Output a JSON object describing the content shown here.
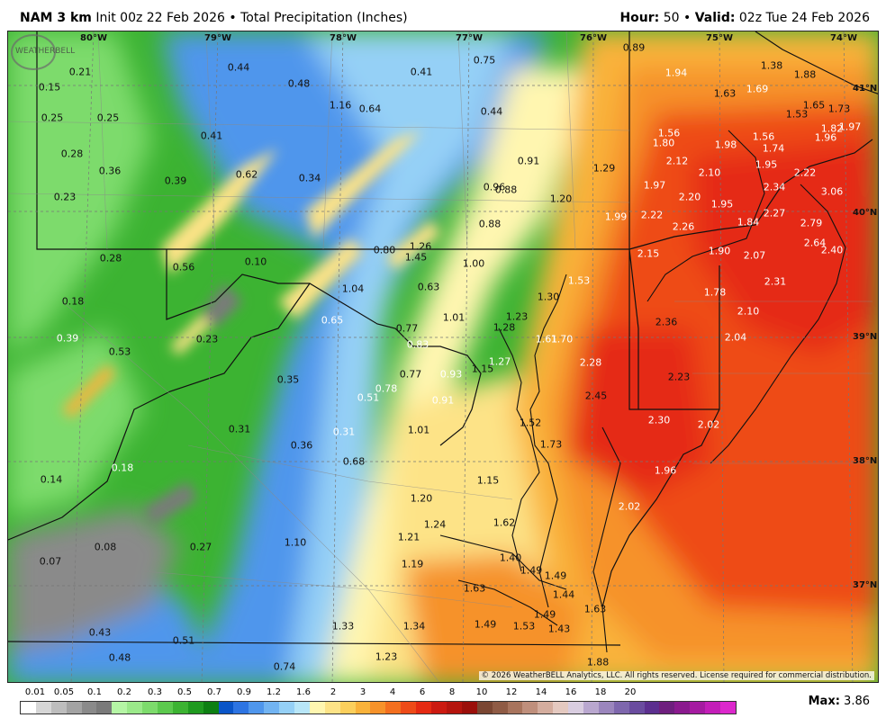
{
  "header": {
    "model": "NAM 3 km",
    "init": "Init 00z 22 Feb 2026",
    "separator": "•",
    "field": "Total Precipitation (Inches)",
    "hour_label": "Hour:",
    "hour_value": "50",
    "valid_label": "Valid:",
    "valid_value": "02z Tue 24 Feb 2026"
  },
  "map": {
    "lon_labels": [
      "80°W",
      "79°W",
      "78°W",
      "77°W",
      "76°W",
      "75°W",
      "74°W"
    ],
    "lat_labels": [
      "41°N",
      "40°N",
      "39°N",
      "38°N",
      "37°N"
    ],
    "copyright": "© 2026 WeatherBELL Analytics, LLC. All rights reserved. License required for commercial distribution.",
    "logo_text": "WEATHERBELL",
    "precip_labels": [
      "0.21",
      "0.44",
      "0.41",
      "0.75",
      "0.89",
      "1.94",
      "1.38",
      "1.88",
      "0.15",
      "0.48",
      "1.63",
      "1.69",
      "1.16",
      "0.64",
      "0.44",
      "1.65",
      "1.73",
      "0.25",
      "0.25",
      "1.53",
      "0.41",
      "1.56",
      "1.80",
      "1.56",
      "1.74",
      "1.82",
      "1.97",
      "1.96",
      "0.28",
      "0.36",
      "0.62",
      "0.34",
      "0.91",
      "1.29",
      "2.12",
      "2.10",
      "1.98",
      "1.95",
      "2.22",
      "0.39",
      "0.23",
      "0.96",
      "0.88",
      "1.20",
      "1.97",
      "2.20",
      "2.34",
      "3.06",
      "1.95",
      "1.99",
      "2.22",
      "2.26",
      "1.84",
      "2.27",
      "2.79",
      "0.88",
      "0.80",
      "1.26",
      "1.45",
      "1.00",
      "2.15",
      "1.90",
      "2.07",
      "2.64",
      "2.40",
      "0.28",
      "0.56",
      "0.10",
      "1.04",
      "0.63",
      "1.53",
      "2.31",
      "1.78",
      "0.18",
      "1.01",
      "1.30",
      "1.23",
      "2.10",
      "0.65",
      "0.77",
      "1.28",
      "2.36",
      "0.39",
      "0.23",
      "0.83",
      "1.61",
      "1.70",
      "2.04",
      "0.53",
      "1.27",
      "2.28",
      "0.77",
      "0.93",
      "1.15",
      "0.35",
      "2.23",
      "0.78",
      "2.45",
      "0.51",
      "0.91",
      "1.52",
      "2.30",
      "2.02",
      "0.31",
      "0.31",
      "1.01",
      "0.36",
      "1.73",
      "0.18",
      "0.68",
      "1.96",
      "0.14",
      "1.15",
      "1.20",
      "2.02",
      "1.24",
      "1.62",
      "0.08",
      "0.27",
      "1.10",
      "1.21",
      "0.07",
      "1.40",
      "1.19",
      "1.49",
      "1.49",
      "1.63",
      "1.44",
      "1.63",
      "1.49",
      "0.43",
      "1.33",
      "1.34",
      "1.49",
      "1.53",
      "1.43",
      "0.51",
      "0.48",
      "1.23",
      "1.88",
      "0.74"
    ]
  },
  "legend": {
    "ticks": [
      "0.01",
      "0.05",
      "0.1",
      "0.2",
      "0.3",
      "0.5",
      "0.7",
      "0.9",
      "1.2",
      "1.6",
      "2",
      "3",
      "4",
      "6",
      "8",
      "10",
      "12",
      "14",
      "16",
      "18",
      "20"
    ],
    "colors": [
      "#ffffff",
      "#d6d6d6",
      "#bdbdbd",
      "#a3a3a3",
      "#8a8a8a",
      "#7a7a7a",
      "#b5f5a5",
      "#9be98a",
      "#7ddb6c",
      "#5cc94e",
      "#3cb332",
      "#1f9a1f",
      "#0d7f12",
      "#0a55c8",
      "#2d74e2",
      "#4f96ec",
      "#72b4f2",
      "#95d0f6",
      "#b8e6f8",
      "#fff6b0",
      "#fde387",
      "#fbcf5c",
      "#f9b23a",
      "#f6922a",
      "#f36f1f",
      "#ee4b18",
      "#e52a12",
      "#cc1a10",
      "#b5140d",
      "#9b0f0a",
      "#7a4632",
      "#8f5b45",
      "#a8745d",
      "#bf8f7c",
      "#d4ad9e",
      "#e4c9c0",
      "#d9cde0",
      "#b9a7cf",
      "#9b86bd",
      "#7e67ad",
      "#6a4c9f",
      "#5c2f8f",
      "#6e1f7e",
      "#8a1a8e",
      "#a51ba1",
      "#c31eb8",
      "#dc28cc"
    ],
    "max_label": "Max:",
    "max_value": "3.86"
  }
}
